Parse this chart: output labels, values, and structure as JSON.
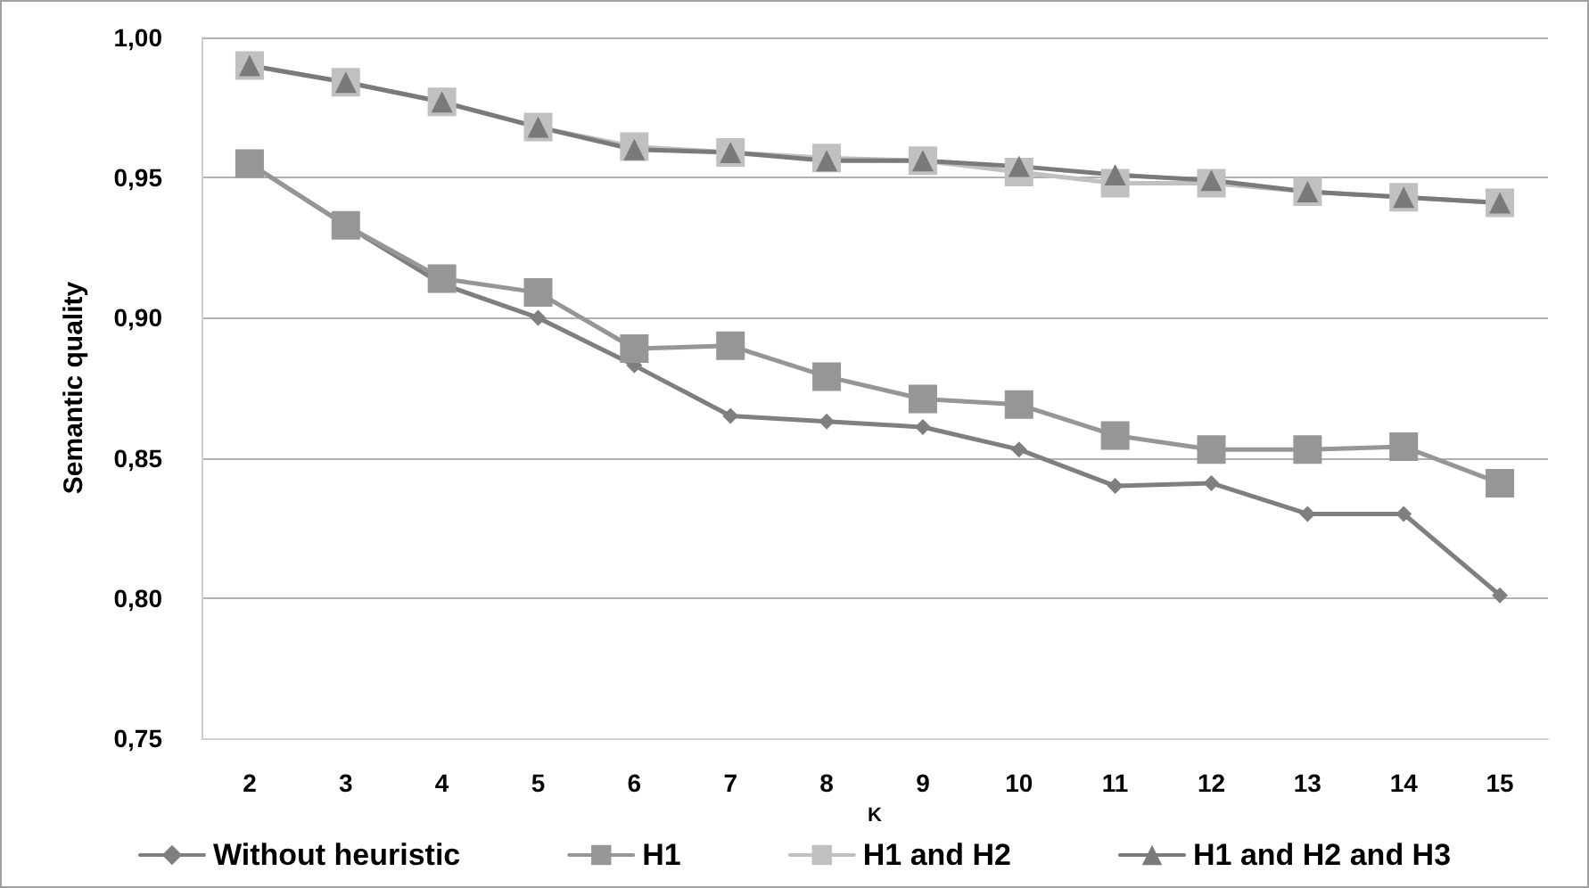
{
  "chart_data": {
    "type": "line",
    "xlabel": "K",
    "ylabel": "Semantic quality",
    "categories": [
      "2",
      "3",
      "4",
      "5",
      "6",
      "7",
      "8",
      "9",
      "10",
      "11",
      "12",
      "13",
      "14",
      "15"
    ],
    "ylim": [
      0.75,
      1.0
    ],
    "yticks": [
      {
        "value": 0.75,
        "label": "0,75"
      },
      {
        "value": 0.8,
        "label": "0,80"
      },
      {
        "value": 0.85,
        "label": "0,85"
      },
      {
        "value": 0.9,
        "label": "0,90"
      },
      {
        "value": 0.95,
        "label": "0,95"
      },
      {
        "value": 1.0,
        "label": "1,00"
      }
    ],
    "grid": "y",
    "legend": "bottom",
    "series": [
      {
        "name": "Without heuristic",
        "color": "#7f7f7f",
        "marker": "diamond",
        "values": [
          0.955,
          0.933,
          0.912,
          0.9,
          0.883,
          0.865,
          0.863,
          0.861,
          0.853,
          0.84,
          0.841,
          0.83,
          0.83,
          0.801
        ]
      },
      {
        "name": "H1",
        "color": "#969696",
        "marker": "square",
        "values": [
          0.955,
          0.933,
          0.914,
          0.909,
          0.889,
          0.89,
          0.879,
          0.871,
          0.869,
          0.858,
          0.853,
          0.853,
          0.854,
          0.841
        ]
      },
      {
        "name": "H1 and H2",
        "color": "#c0c0c0",
        "marker": "square",
        "values": [
          0.99,
          0.984,
          0.977,
          0.968,
          0.961,
          0.959,
          0.957,
          0.956,
          0.952,
          0.948,
          0.948,
          0.945,
          0.943,
          0.941
        ]
      },
      {
        "name": "H1 and H2 and H3",
        "color": "#7a7a7a",
        "marker": "triangle",
        "values": [
          0.99,
          0.984,
          0.977,
          0.968,
          0.96,
          0.959,
          0.956,
          0.956,
          0.954,
          0.951,
          0.949,
          0.945,
          0.943,
          0.941
        ]
      }
    ]
  }
}
